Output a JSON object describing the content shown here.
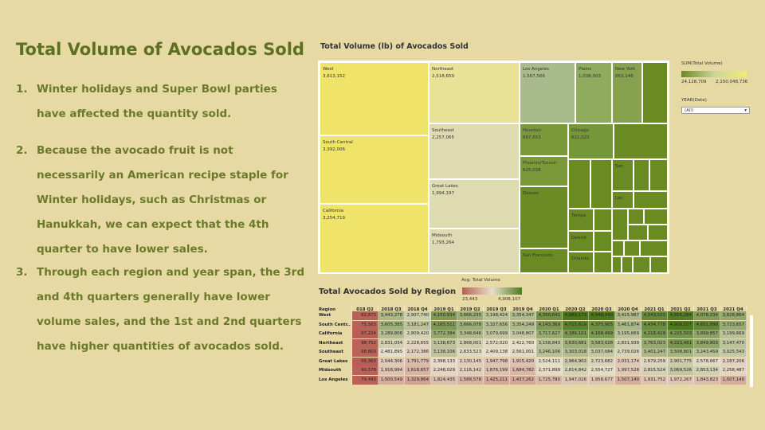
{
  "slide": {
    "title": "Total Volume of Avocados Sold",
    "points": [
      {
        "number": "1.",
        "lines": [
          "Winter holidays and Super Bowl parties",
          "have affected the quantity sold."
        ]
      },
      {
        "number": "2.",
        "lines": [
          "Because the avocado fruit is not",
          "necessarily an American recipe staple for",
          "Winter holidays, such as Christmas or",
          "Hanukkah, we can expect that the 4th",
          "quarter to have lower sales."
        ]
      },
      {
        "number": "3.",
        "lines": [
          "Through each region and year span, the 3rd",
          "and 4th quarters generally have lower",
          "volume sales, and the 1st and 2nd quarters",
          "have higher quantities of avocados sold."
        ]
      }
    ]
  },
  "treemap": {
    "title": "Total Volume (lb) of Avocados Sold",
    "legend_title": "SUM(Total Volume)",
    "legend_min": "24,128,709",
    "legend_max": "2,150,048,736",
    "filter_title": "YEAR(Date)",
    "filter_value": "(All)",
    "tiles": [
      {
        "label": "West",
        "value": "3,613,152"
      },
      {
        "label": "South Central",
        "value": "3,392,006"
      },
      {
        "label": "California",
        "value": "3,254,719"
      },
      {
        "label": "Northeast",
        "value": "2,518,659"
      },
      {
        "label": "Southeast",
        "value": "2,257,065"
      },
      {
        "label": "Great Lakes",
        "value": "1,994,197"
      },
      {
        "label": "Midsouth",
        "value": "1,793,264"
      },
      {
        "label": "Los Angeles",
        "value": "1,567,566"
      },
      {
        "label": "Plains",
        "value": "1,038,003"
      },
      {
        "label": "New York",
        "value": "863,146"
      },
      {
        "label": "Houston",
        "value": "687,653"
      },
      {
        "label": "Chicago",
        "value": "621,021"
      },
      {
        "label": "Phoenix/Tucson",
        "value": "625,038"
      },
      {
        "label": "Denver"
      },
      {
        "label": "San Francisco"
      },
      {
        "label": "Tampa"
      },
      {
        "label": "Detroit"
      },
      {
        "label": "Orlando"
      },
      {
        "label": "San"
      },
      {
        "label": "Las"
      }
    ]
  },
  "table": {
    "title": "Total Avocados Sold by Region",
    "legend_title": "Avg. Total Volume",
    "legend_min": "23,443",
    "legend_max": "4,908,107",
    "header": [
      "Region",
      "018 Q2",
      "2018 Q3",
      "2018 Q4",
      "2019 Q1",
      "2019 Q2",
      "2019 Q3",
      "2019 Q4",
      "2020 Q1",
      "2020 Q2",
      "2020 Q3",
      "2020 Q4",
      "2021 Q1",
      "2021 Q2",
      "2021 Q3",
      "2021 Q4"
    ],
    "rows": [
      {
        "region": "West",
        "cells": [
          "62,673",
          "3,443,278",
          "2,907,740",
          "4,150,934",
          "3,666,235",
          "3,198,424",
          "3,354,347",
          "4,350,641",
          "4,980,173",
          "4,948,440",
          "3,415,987",
          "4,543,523",
          "4,816,284",
          "4,078,234",
          "3,828,864"
        ]
      },
      {
        "region": "South Centr..",
        "cells": [
          "75,563",
          "3,605,385",
          "3,181,247",
          "4,165,511",
          "3,666,078",
          "3,327,656",
          "3,354,249",
          "4,143,369",
          "4,715,619",
          "4,375,905",
          "3,461,874",
          "4,434,778",
          "4,908,107",
          "4,601,898",
          "3,723,657"
        ]
      },
      {
        "region": "California",
        "cells": [
          "07,224",
          "3,289,808",
          "2,809,420",
          "3,772,394",
          "3,348,646",
          "3,079,699",
          "3,048,807",
          "3,717,627",
          "4,186,101",
          "4,168,499",
          "3,195,669",
          "4,218,429",
          "4,225,503",
          "3,899,857",
          "3,199,669"
        ]
      },
      {
        "region": "Northeast",
        "cells": [
          "98,752",
          "2,831,034",
          "2,228,655",
          "3,138,673",
          "2,868,001",
          "2,572,020",
          "2,422,760",
          "3,158,843",
          "3,630,681",
          "3,583,028",
          "2,831,939",
          "3,763,023",
          "4,223,481",
          "3,849,803",
          "3,147,470"
        ]
      },
      {
        "region": "Southeast",
        "cells": [
          "98,803",
          "2,481,895",
          "2,172,386",
          "3,138,106",
          "2,633,523",
          "2,409,138",
          "2,561,001",
          "3,246,106",
          "3,303,018",
          "3,037,084",
          "2,739,026",
          "3,401,247",
          "3,508,801",
          "3,243,459",
          "3,025,543"
        ]
      },
      {
        "region": "Great Lakes",
        "cells": [
          "05,363",
          "2,044,306",
          "1,791,779",
          "2,398,133",
          "2,130,145",
          "1,947,798",
          "1,915,420",
          "2,524,111",
          "2,964,902",
          "2,723,682",
          "2,031,174",
          "2,679,259",
          "2,901,775",
          "2,578,667",
          "2,187,206"
        ]
      },
      {
        "region": "Midsouth",
        "cells": [
          "90,578",
          "1,918,994",
          "1,618,657",
          "2,248,029",
          "2,116,142",
          "1,876,199",
          "1,684,782",
          "2,371,899",
          "2,814,842",
          "2,554,727",
          "1,997,528",
          "2,815,524",
          "3,069,526",
          "2,853,134",
          "2,258,487"
        ]
      },
      {
        "region": "Los Angeles",
        "cells": [
          "79,443",
          "1,500,549",
          "1,329,864",
          "1,824,435",
          "1,588,578",
          "1,425,211",
          "1,437,262",
          "1,725,780",
          "1,947,026",
          "1,958,677",
          "1,507,140",
          "1,931,752",
          "1,972,267",
          "1,843,823",
          "1,507,140"
        ]
      }
    ]
  }
}
